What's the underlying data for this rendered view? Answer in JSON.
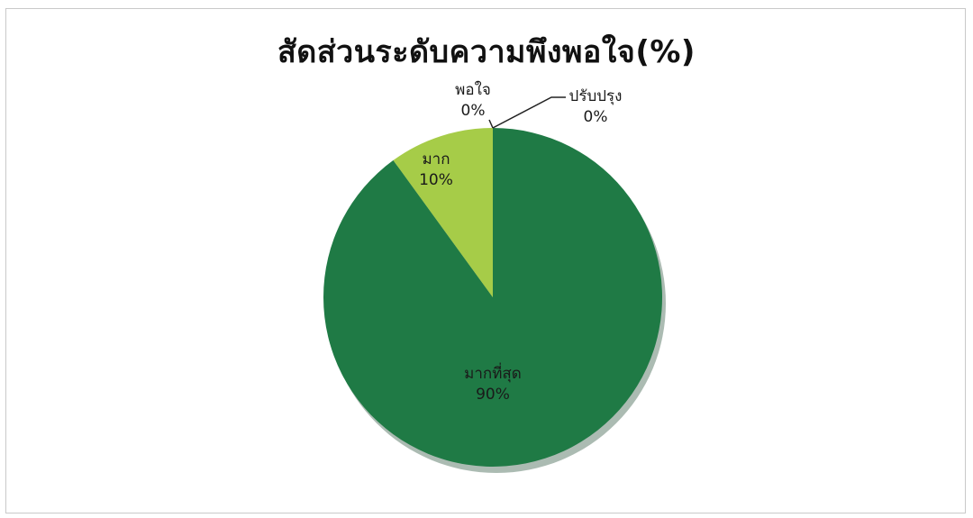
{
  "chart_data": {
    "type": "pie",
    "title": "สัดส่วนระดับความพึงพอใจ(%)",
    "slices": [
      {
        "name": "มากที่สุด",
        "value": 90,
        "value_label": "90%",
        "color": "#1f7a45"
      },
      {
        "name": "มาก",
        "value": 10,
        "value_label": "10%",
        "color": "#a6cc48"
      },
      {
        "name": "พอใจ",
        "value": 0,
        "value_label": "0%",
        "color": "#7fb04a"
      },
      {
        "name": "ปรับปรุง",
        "value": 0,
        "value_label": "0%",
        "color": "#4d9a4a"
      }
    ],
    "legend": "none"
  }
}
